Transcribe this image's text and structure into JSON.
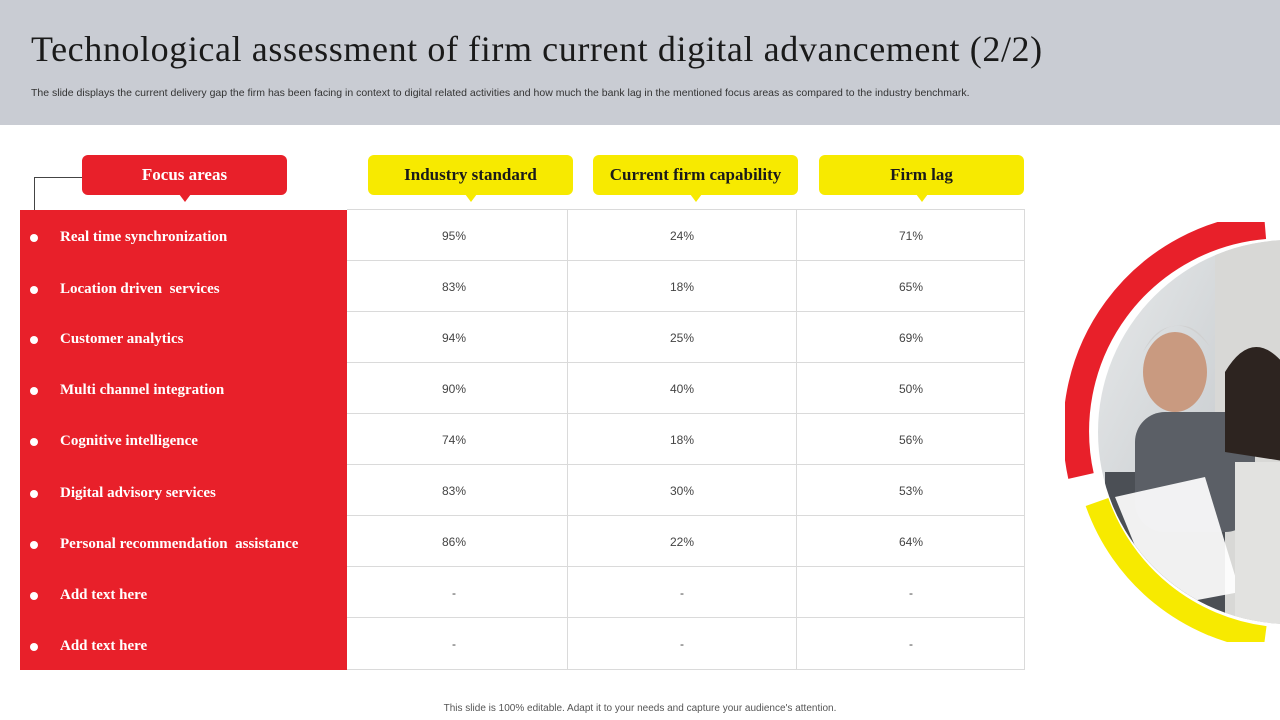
{
  "title": "Technological assessment of firm current digital advancement (2/2)",
  "subtitle": "The slide displays the current delivery gap the firm has been facing in context to digital related activities and how much the bank lag in the mentioned focus areas as compared to the industry benchmark.",
  "headers": {
    "focus": "Focus areas",
    "industry": "Industry standard",
    "current": "Current firm capability",
    "lag": "Firm lag"
  },
  "rows": [
    {
      "area": "Real time synchronization",
      "industry": "95%",
      "current": "24%",
      "lag": "71%"
    },
    {
      "area": "Location driven  services",
      "industry": "83%",
      "current": "18%",
      "lag": "65%"
    },
    {
      "area": "Customer analytics",
      "industry": "94%",
      "current": "25%",
      "lag": "69%"
    },
    {
      "area": "Multi channel integration",
      "industry": "90%",
      "current": "40%",
      "lag": "50%"
    },
    {
      "area": "Cognitive intelligence",
      "industry": "74%",
      "current": "18%",
      "lag": "56%"
    },
    {
      "area": "Digital advisory services",
      "industry": "83%",
      "current": "30%",
      "lag": "53%"
    },
    {
      "area": "Personal recommendation  assistance",
      "industry": "86%",
      "current": "22%",
      "lag": "64%"
    },
    {
      "area": "Add text here",
      "industry": "-",
      "current": "-",
      "lag": "-"
    },
    {
      "area": "Add text here",
      "industry": "-",
      "current": "-",
      "lag": "-"
    }
  ],
  "footer": "This slide is 100% editable.  Adapt it to your needs and capture your audience's attention.",
  "colors": {
    "accent_red": "#e8202a",
    "accent_yellow": "#f7ea00",
    "header_bg": "#c9ccd3"
  }
}
